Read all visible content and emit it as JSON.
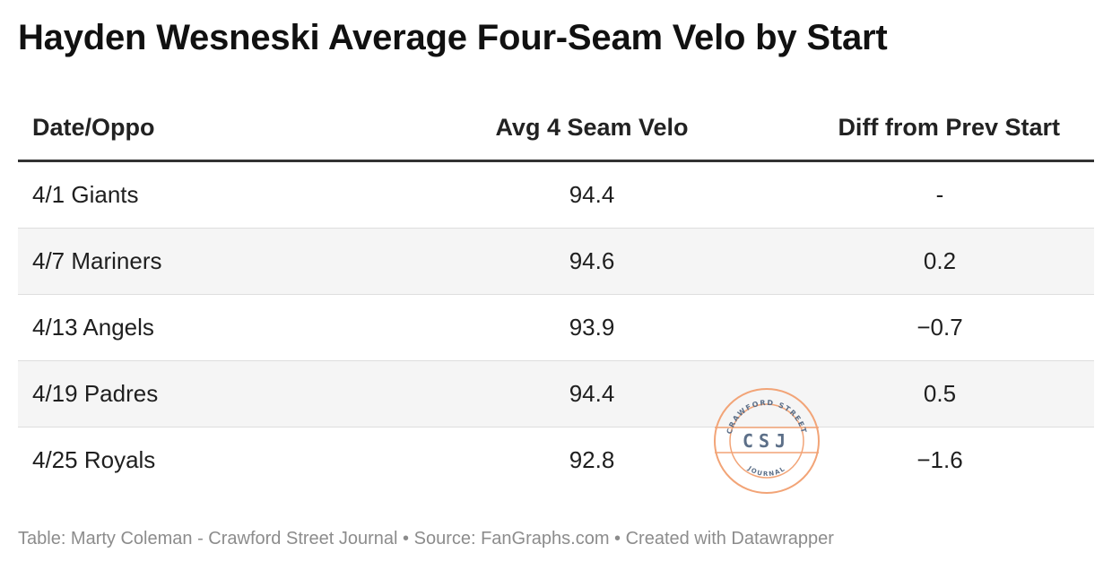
{
  "title": "Hayden Wesneski Average Four-Seam Velo by Start",
  "chart_data": {
    "type": "table",
    "columns": [
      "Date/Oppo",
      "Avg 4 Seam Velo",
      "Diff from Prev Start"
    ],
    "rows": [
      {
        "date_oppo": "4/1 Giants",
        "velo": "94.4",
        "diff": "-"
      },
      {
        "date_oppo": "4/7 Mariners",
        "velo": "94.6",
        "diff": "0.2"
      },
      {
        "date_oppo": "4/13 Angels",
        "velo": "93.9",
        "diff": "−0.7"
      },
      {
        "date_oppo": "4/19 Padres",
        "velo": "94.4",
        "diff": "0.5"
      },
      {
        "date_oppo": "4/25 Royals",
        "velo": "92.8",
        "diff": "−1.6"
      }
    ]
  },
  "footer": "Table: Marty Coleman - Crawford Street Journal • Source: FanGraphs.com • Created with Datawrapper",
  "watermark": {
    "top_text": "CRAWFORD STREET",
    "center_text": "CSJ",
    "bottom_text": "JOURNAL",
    "ring_color": "#f2a477",
    "text_color": "#5c6f88"
  },
  "colors": {
    "title": "#111111",
    "header_rule": "#333333",
    "row_alt": "#f5f5f5",
    "row_divider": "#dedede",
    "footer_text": "#8c8c8c"
  }
}
